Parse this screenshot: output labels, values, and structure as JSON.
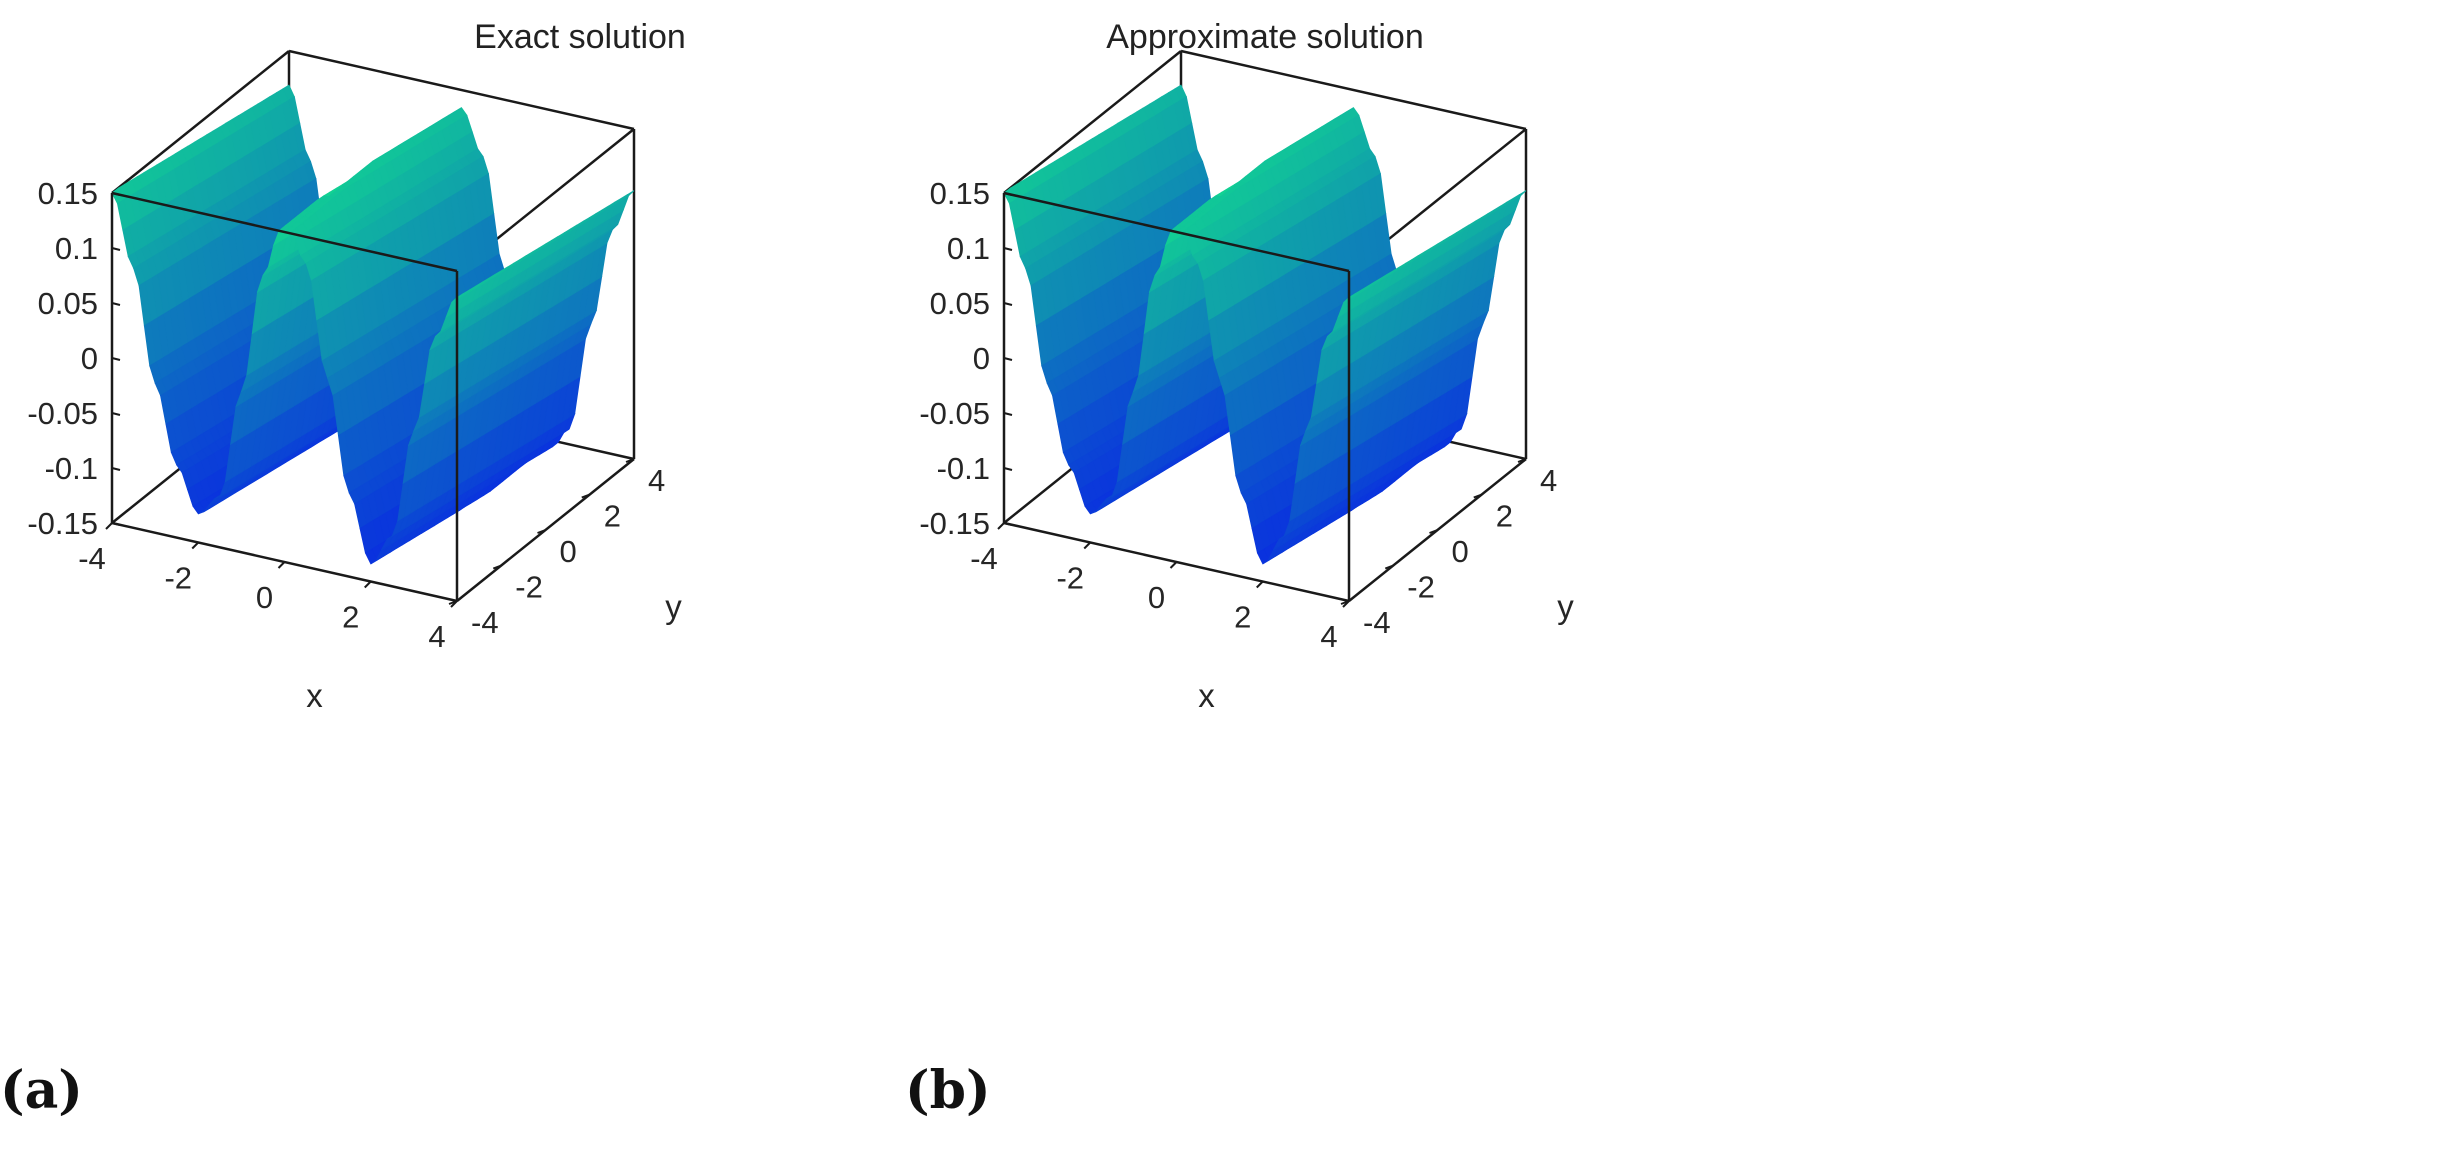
{
  "figure": {
    "panels": [
      {
        "label": "(a)",
        "title": "Exact solution"
      },
      {
        "label": "(b)",
        "title": "Approximate solution"
      }
    ]
  },
  "chart_data": [
    {
      "type": "surface",
      "title": "Exact solution",
      "xlabel": "x",
      "ylabel": "y",
      "zlabel": "",
      "xlim": [
        -4,
        4
      ],
      "ylim": [
        -4,
        4
      ],
      "zlim": [
        -0.15,
        0.15
      ],
      "xticks": [
        "-4",
        "-2",
        "0",
        "2",
        "4"
      ],
      "yticks": [
        "-4",
        "-2",
        "0",
        "2",
        "4"
      ],
      "zticks": [
        "-0.15",
        "-0.1",
        "-0.05",
        "0",
        "0.05",
        "0.1",
        "0.15"
      ],
      "surface": {
        "description_of_shape": "ridges along y; z varies with x",
        "x": [
          -4,
          -3.5,
          -3,
          -2.5,
          -2,
          -1.5,
          -1,
          -0.5,
          0,
          0.5,
          1,
          1.5,
          2,
          2.5,
          3,
          3.5,
          4
        ],
        "z_of_x": [
          0.135,
          0.07,
          -0.03,
          -0.1,
          -0.14,
          -0.12,
          -0.02,
          0.09,
          0.15,
          0.11,
          0.01,
          -0.09,
          -0.15,
          -0.12,
          -0.02,
          0.07,
          0.11
        ],
        "y_drift_per_unit": -0.004
      },
      "colormap": {
        "low": "#0a2ee0",
        "high": "#12d492"
      },
      "grid": false,
      "box": true
    },
    {
      "type": "surface",
      "title": "Approximate solution",
      "xlabel": "x",
      "ylabel": "y",
      "zlabel": "",
      "xlim": [
        -4,
        4
      ],
      "ylim": [
        -4,
        4
      ],
      "zlim": [
        -0.15,
        0.15
      ],
      "xticks": [
        "-4",
        "-2",
        "0",
        "2",
        "4"
      ],
      "yticks": [
        "-4",
        "-2",
        "0",
        "2",
        "4"
      ],
      "zticks": [
        "-0.15",
        "-0.1",
        "-0.05",
        "0",
        "0.05",
        "0.1",
        "0.15"
      ],
      "surface": {
        "description_of_shape": "ridges along y; z varies with x",
        "x": [
          -4,
          -3.5,
          -3,
          -2.5,
          -2,
          -1.5,
          -1,
          -0.5,
          0,
          0.5,
          1,
          1.5,
          2,
          2.5,
          3,
          3.5,
          4
        ],
        "z_of_x": [
          0.135,
          0.07,
          -0.03,
          -0.1,
          -0.14,
          -0.12,
          -0.02,
          0.09,
          0.15,
          0.11,
          0.01,
          -0.09,
          -0.15,
          -0.12,
          -0.02,
          0.07,
          0.11
        ],
        "y_drift_per_unit": -0.004
      },
      "colormap": {
        "low": "#0a2ee0",
        "high": "#12d492"
      },
      "grid": false,
      "box": true
    }
  ]
}
